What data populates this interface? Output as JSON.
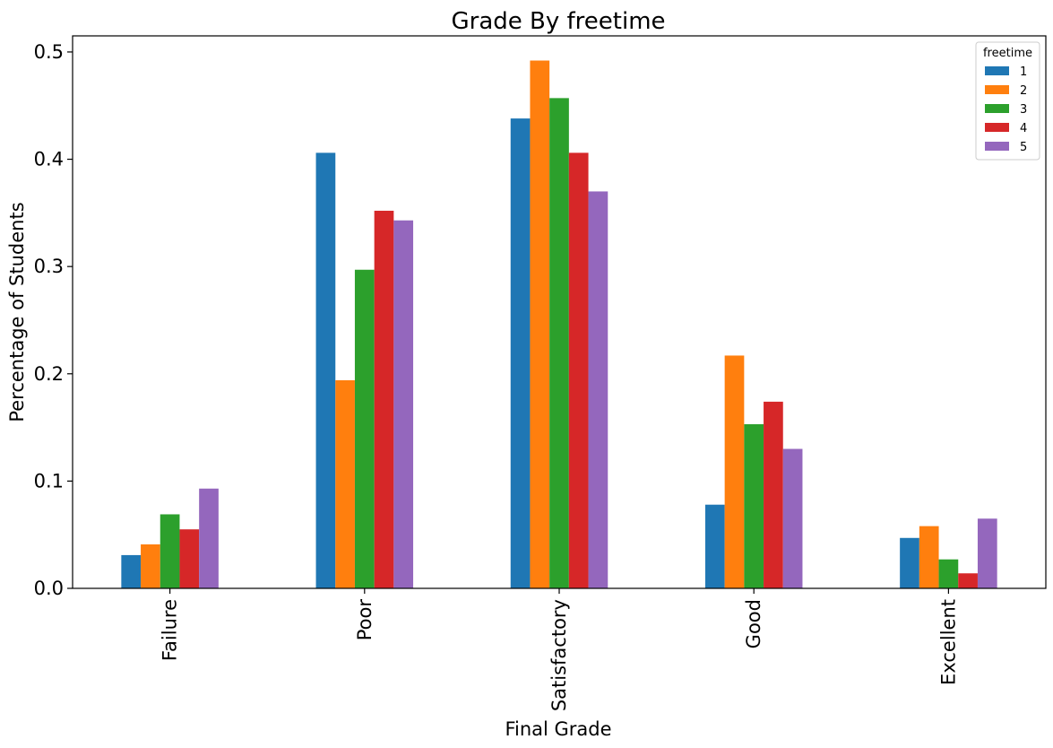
{
  "chart_data": {
    "type": "bar",
    "title": "Grade By freetime",
    "xlabel": "Final Grade",
    "ylabel": "Percentage of Students",
    "categories": [
      "Failure",
      "Poor",
      "Satisfactory",
      "Good",
      "Excellent"
    ],
    "ylim": [
      0,
      0.515
    ],
    "yticks": [
      0.0,
      0.1,
      0.2,
      0.3,
      0.4,
      0.5
    ],
    "ytick_labels": [
      "0.0",
      "0.1",
      "0.2",
      "0.3",
      "0.4",
      "0.5"
    ],
    "grid": false,
    "legend": {
      "title": "freetime",
      "placement": "top-right"
    },
    "series": [
      {
        "name": "1",
        "color": "#1f77b4",
        "values": [
          0.031,
          0.406,
          0.438,
          0.078,
          0.047
        ]
      },
      {
        "name": "2",
        "color": "#ff7f0e",
        "values": [
          0.041,
          0.194,
          0.492,
          0.217,
          0.058
        ]
      },
      {
        "name": "3",
        "color": "#2ca02c",
        "values": [
          0.069,
          0.297,
          0.457,
          0.153,
          0.027
        ]
      },
      {
        "name": "4",
        "color": "#d62728",
        "values": [
          0.055,
          0.352,
          0.406,
          0.174,
          0.014
        ]
      },
      {
        "name": "5",
        "color": "#9467bd",
        "values": [
          0.093,
          0.343,
          0.37,
          0.13,
          0.065
        ]
      }
    ]
  }
}
